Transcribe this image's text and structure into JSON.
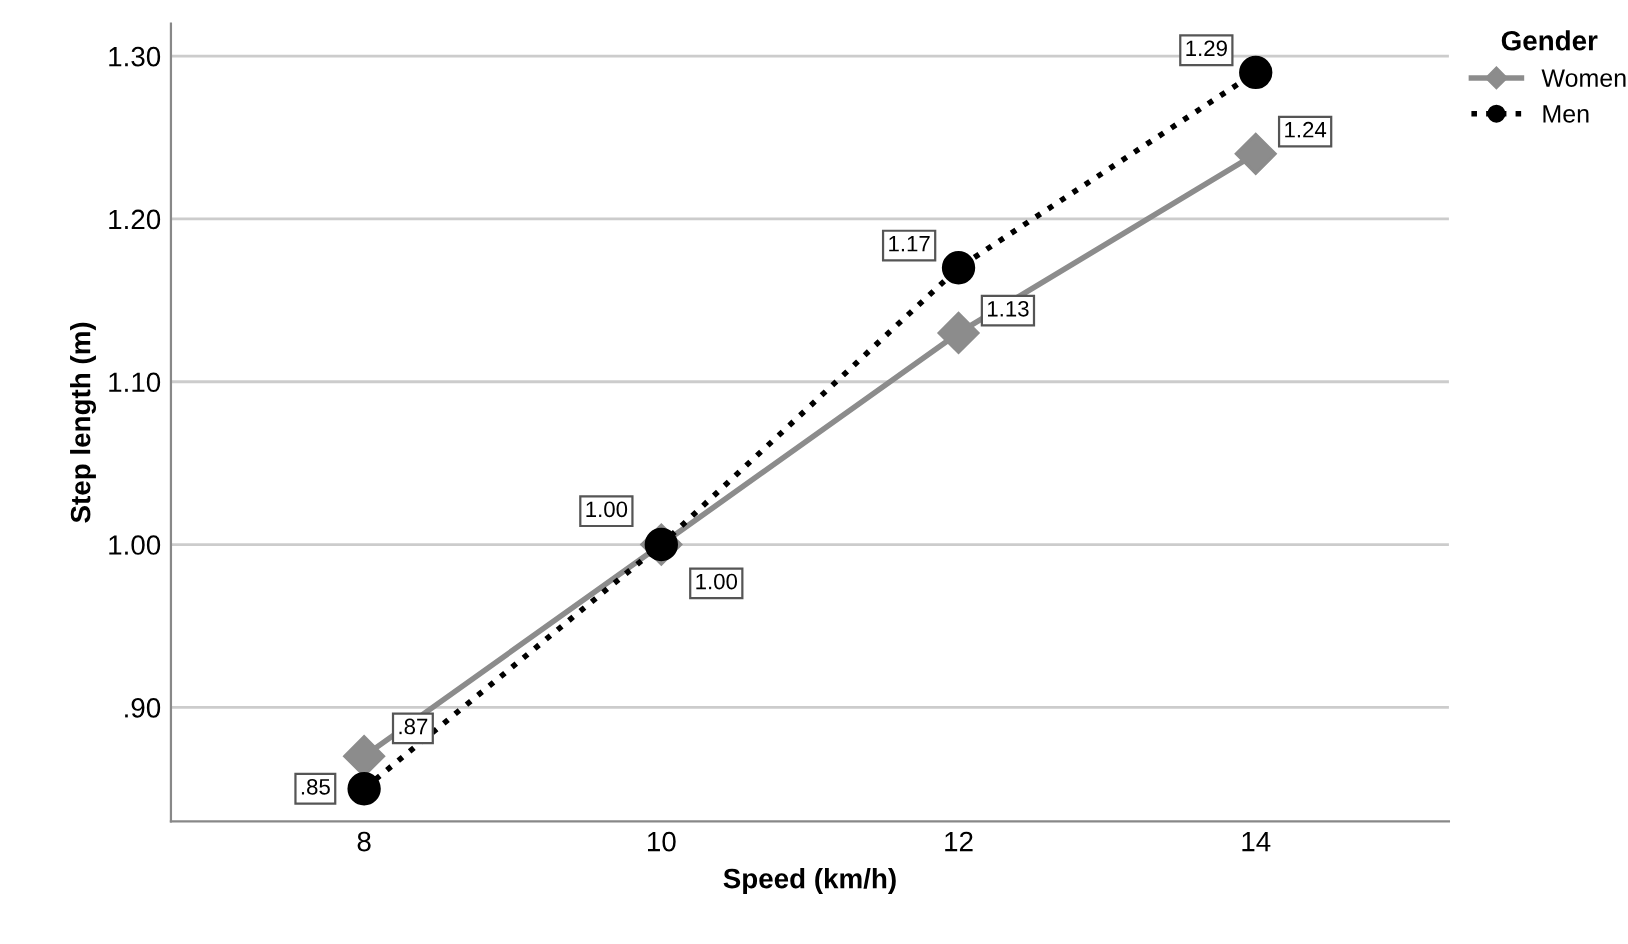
{
  "chart_data": {
    "type": "line",
    "xlabel": "Speed (km/h)",
    "ylabel": "Step length (m)",
    "legend_title": "Gender",
    "legend": "top right",
    "x": [
      8,
      10,
      12,
      14
    ],
    "series": [
      {
        "name": "Women",
        "color": "#8c8c8c",
        "values": [
          0.87,
          1.0,
          1.13,
          1.24
        ],
        "value_labels": [
          ".87",
          "1.00",
          "1.13",
          "1.24"
        ],
        "marker": "diamond",
        "line_style": "solid"
      },
      {
        "name": "Men",
        "color": "#000000",
        "values": [
          0.85,
          1.0,
          1.17,
          1.29
        ],
        "value_labels": [
          ".85",
          "1.00",
          "1.17",
          "1.29"
        ],
        "marker": "circle",
        "line_style": "dotted"
      }
    ],
    "xlim": [
      6.7,
      15.3
    ],
    "xticks": [
      8,
      10,
      12,
      14
    ],
    "ylim": [
      0.83,
      1.32
    ],
    "yticks": [
      {
        "value": 0.9,
        "label": ".90"
      },
      {
        "value": 1.0,
        "label": "1.00"
      },
      {
        "value": 1.1,
        "label": "1.10"
      },
      {
        "value": 1.2,
        "label": "1.20"
      },
      {
        "value": 1.3,
        "label": "1.30"
      }
    ],
    "grid": "y"
  }
}
